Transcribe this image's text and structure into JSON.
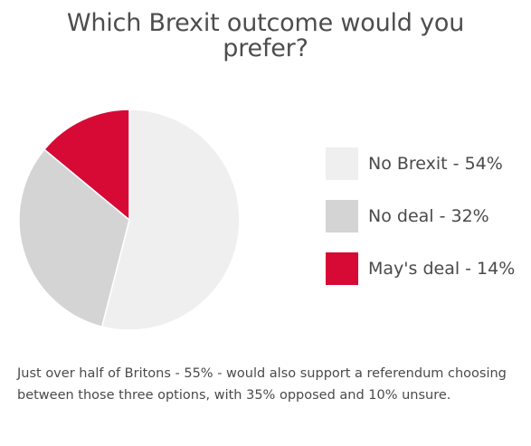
{
  "chart_data": {
    "type": "pie",
    "title_lines": [
      "Which Brexit outcome would you",
      "prefer?"
    ],
    "slices": [
      {
        "label": "No Brexit - 54%",
        "value": 54,
        "color": "#efefef"
      },
      {
        "label": "No deal - 32%",
        "value": 32,
        "color": "#d4d4d4"
      },
      {
        "label": "May's deal - 14%",
        "value": 14,
        "color": "#d70a35"
      }
    ]
  },
  "footnote": "Just over half of Britons - 55% - would also support a referendum choosing between those three options, with 35% opposed and 10% unsure."
}
